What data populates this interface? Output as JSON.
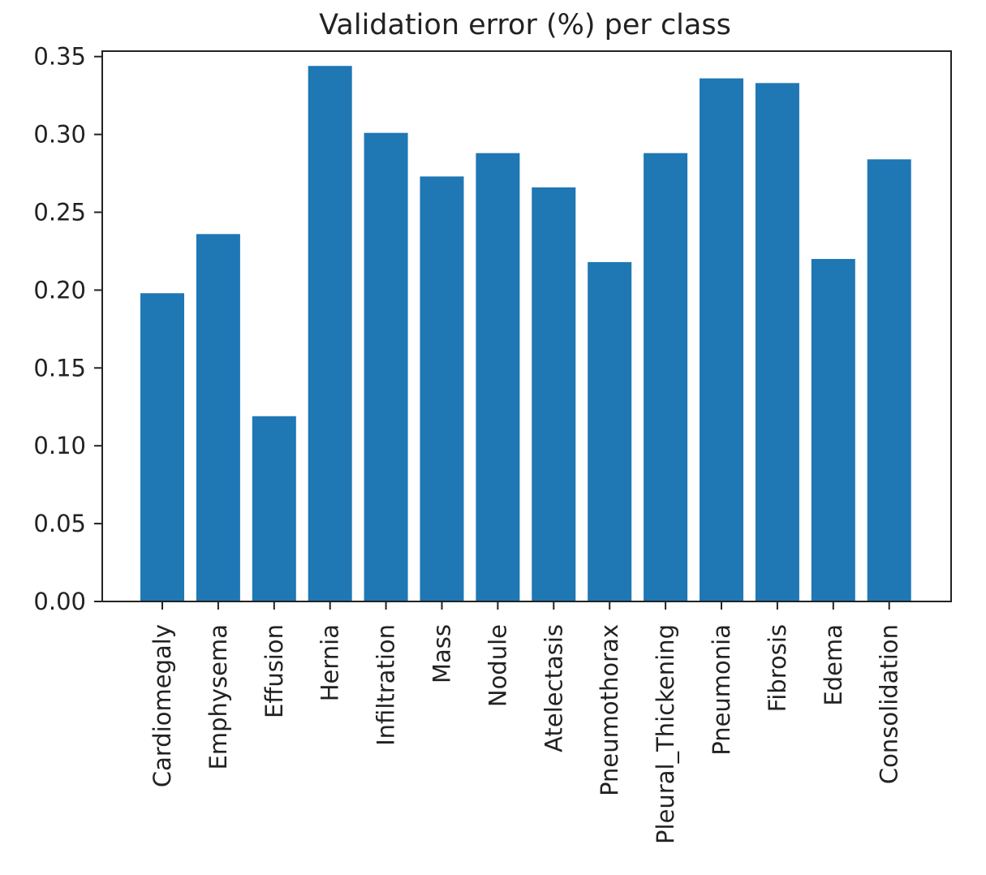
{
  "chart_data": {
    "type": "bar",
    "title": "Validation error (%) per class",
    "xlabel": "",
    "ylabel": "",
    "categories": [
      "Cardiomegaly",
      "Emphysema",
      "Effusion",
      "Hernia",
      "Infiltration",
      "Mass",
      "Nodule",
      "Atelectasis",
      "Pneumothorax",
      "Pleural_Thickening",
      "Pneumonia",
      "Fibrosis",
      "Edema",
      "Consolidation"
    ],
    "values": [
      0.198,
      0.236,
      0.119,
      0.344,
      0.301,
      0.273,
      0.288,
      0.266,
      0.218,
      0.288,
      0.336,
      0.333,
      0.22,
      0.284
    ],
    "ylim": [
      0,
      0.35
    ],
    "yticks": [
      "0.00",
      "0.05",
      "0.10",
      "0.15",
      "0.20",
      "0.25",
      "0.30",
      "0.35"
    ],
    "bar_color": "#1f77b4",
    "grid": false,
    "legend": false
  }
}
